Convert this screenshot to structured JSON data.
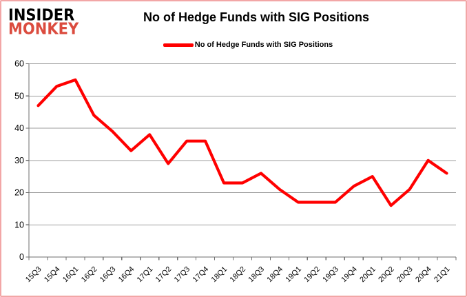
{
  "logo": {
    "line1": "INSIDER",
    "line2": "MONKEY"
  },
  "header": {
    "title": "No of Hedge Funds with SIG Positions"
  },
  "legend": {
    "label": "No of Hedge Funds with SIG Positions"
  },
  "colors": {
    "line": "#ff0000",
    "logo_red": "#db4c3f",
    "grid": "#9c9c9c",
    "axis": "#6e6e6e",
    "text": "#000000",
    "border": "#f2a6a6"
  },
  "chart_data": {
    "type": "line",
    "title": "No of Hedge Funds with SIG Positions",
    "categories": [
      "15Q3",
      "15Q4",
      "16Q1",
      "16Q2",
      "16Q3",
      "16Q4",
      "17Q1",
      "17Q2",
      "17Q3",
      "17Q4",
      "18Q1",
      "18Q2",
      "18Q3",
      "18Q4",
      "19Q1",
      "19Q2",
      "19Q3",
      "19Q4",
      "20Q1",
      "20Q2",
      "20Q3",
      "20Q4",
      "21Q1"
    ],
    "series": [
      {
        "name": "No of Hedge Funds with SIG Positions",
        "values": [
          47,
          53,
          55,
          44,
          39,
          33,
          38,
          29,
          36,
          36,
          23,
          23,
          26,
          21,
          17,
          17,
          17,
          22,
          25,
          16,
          21,
          30,
          26
        ]
      }
    ],
    "xlabel": "",
    "ylabel": "",
    "ylim": [
      0,
      60
    ],
    "yticks": [
      0,
      10,
      20,
      30,
      40,
      50,
      60
    ],
    "grid": true,
    "legend_position": "top-center",
    "marker": "none"
  }
}
